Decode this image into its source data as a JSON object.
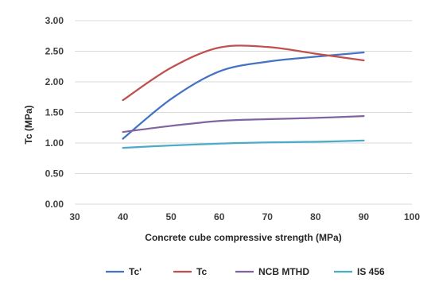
{
  "chart_data": {
    "type": "line",
    "title": "",
    "xlabel": "Concrete cube compressive strength (MPa)",
    "ylabel": "Tc (MPa)",
    "xlim": [
      30,
      100
    ],
    "ylim": [
      0,
      3
    ],
    "x_ticks": [
      30,
      40,
      50,
      60,
      70,
      80,
      90,
      100
    ],
    "y_ticks": [
      "0.00",
      "0.50",
      "1.00",
      "1.50",
      "2.00",
      "2.50",
      "3.00"
    ],
    "grid": "horizontal",
    "legend_position": "bottom",
    "x": [
      40,
      50,
      60,
      70,
      80,
      90
    ],
    "series": [
      {
        "name": "Tc'",
        "color": "#4472c4",
        "values": [
          1.07,
          1.72,
          2.17,
          2.33,
          2.41,
          2.48
        ]
      },
      {
        "name": "Tc",
        "color": "#c0504d",
        "values": [
          1.7,
          2.23,
          2.56,
          2.57,
          2.46,
          2.35
        ]
      },
      {
        "name": "NCB MTHD",
        "color": "#8064a2",
        "values": [
          1.18,
          1.28,
          1.36,
          1.39,
          1.41,
          1.44
        ]
      },
      {
        "name": "IS 456",
        "color": "#4bacc6",
        "values": [
          0.92,
          0.96,
          0.99,
          1.01,
          1.02,
          1.04
        ]
      }
    ]
  }
}
